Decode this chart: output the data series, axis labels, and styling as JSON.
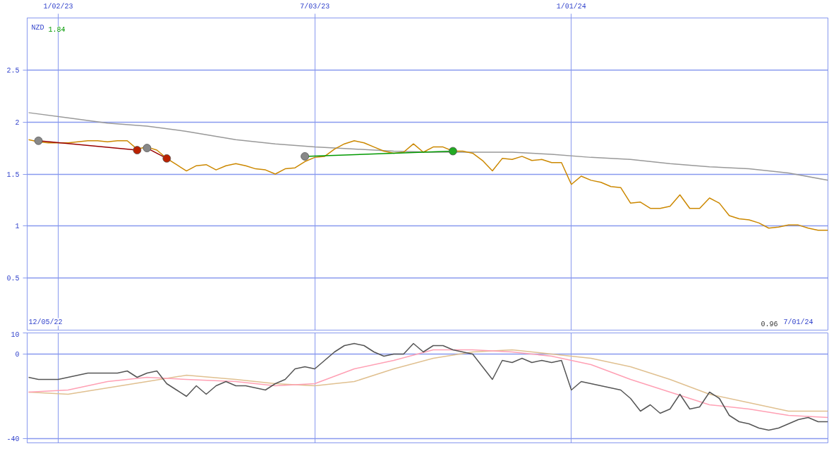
{
  "chart_data": [
    {
      "type": "line",
      "grid": true,
      "marker": "none",
      "annotations": [
        "NZD",
        "1.84",
        "12/05/22",
        "0.96",
        "7/01/24"
      ],
      "xlim": [
        "2022-12-11",
        "2024-07-01"
      ],
      "xticks": [
        {
          "value": "2023-01-02",
          "label": "1/02/23"
        },
        {
          "value": "2023-07-03",
          "label": "7/03/23"
        },
        {
          "value": "2024-01-01",
          "label": "1/01/24"
        }
      ],
      "ylim": [
        0,
        3
      ],
      "yticks": [
        0.5,
        1,
        1.5,
        2,
        2.5
      ],
      "x": [
        "2022-12-12",
        "2022-12-19",
        "2022-12-26",
        "2023-01-02",
        "2023-01-09",
        "2023-01-16",
        "2023-01-23",
        "2023-01-30",
        "2023-02-06",
        "2023-02-13",
        "2023-02-20",
        "2023-02-27",
        "2023-03-06",
        "2023-03-13",
        "2023-03-20",
        "2023-03-27",
        "2023-04-03",
        "2023-04-10",
        "2023-04-17",
        "2023-04-24",
        "2023-05-01",
        "2023-05-08",
        "2023-05-15",
        "2023-05-22",
        "2023-05-29",
        "2023-06-05",
        "2023-06-12",
        "2023-06-19",
        "2023-06-26",
        "2023-07-03",
        "2023-07-10",
        "2023-07-17",
        "2023-07-24",
        "2023-07-31",
        "2023-08-07",
        "2023-08-14",
        "2023-08-21",
        "2023-08-28",
        "2023-09-04",
        "2023-09-11",
        "2023-09-18",
        "2023-09-25",
        "2023-10-02",
        "2023-10-09",
        "2023-10-16",
        "2023-10-23",
        "2023-10-30",
        "2023-11-06",
        "2023-11-13",
        "2023-11-20",
        "2023-11-27",
        "2023-12-04",
        "2023-12-11",
        "2023-12-18",
        "2023-12-25",
        "2024-01-01",
        "2024-01-08",
        "2024-01-15",
        "2024-01-22",
        "2024-01-29",
        "2024-02-05",
        "2024-02-12",
        "2024-02-19",
        "2024-02-26",
        "2024-03-04",
        "2024-03-11",
        "2024-03-18",
        "2024-03-25",
        "2024-04-01",
        "2024-04-08",
        "2024-04-15",
        "2024-04-22",
        "2024-04-29",
        "2024-05-06",
        "2024-05-13",
        "2024-05-20",
        "2024-05-27",
        "2024-06-03",
        "2024-06-10",
        "2024-06-17",
        "2024-06-24",
        "2024-07-01"
      ],
      "series": [
        {
          "color": "#999999",
          "x": [
            "2022-12-12",
            "2023-01-09",
            "2023-02-06",
            "2023-03-06",
            "2023-04-03",
            "2023-05-08",
            "2023-06-05",
            "2023-07-03",
            "2023-07-31",
            "2023-08-28",
            "2023-09-25",
            "2023-10-23",
            "2023-11-20",
            "2023-12-18",
            "2024-01-15",
            "2024-02-12",
            "2024-03-11",
            "2024-04-08",
            "2024-05-06",
            "2024-06-03",
            "2024-07-01"
          ],
          "values": [
            2.09,
            2.04,
            1.99,
            1.96,
            1.91,
            1.83,
            1.79,
            1.76,
            1.74,
            1.72,
            1.71,
            1.71,
            1.71,
            1.69,
            1.66,
            1.64,
            1.6,
            1.57,
            1.55,
            1.51,
            1.44
          ]
        },
        {
          "color": "#cc8800",
          "values": [
            1.83,
            1.81,
            1.8,
            1.8,
            1.8,
            1.81,
            1.82,
            1.82,
            1.81,
            1.82,
            1.82,
            1.74,
            1.76,
            1.73,
            1.65,
            1.59,
            1.53,
            1.58,
            1.59,
            1.54,
            1.58,
            1.6,
            1.58,
            1.55,
            1.54,
            1.5,
            1.55,
            1.56,
            1.62,
            1.66,
            1.67,
            1.74,
            1.79,
            1.82,
            1.8,
            1.76,
            1.72,
            1.7,
            1.71,
            1.79,
            1.71,
            1.76,
            1.76,
            1.72,
            1.72,
            1.7,
            1.63,
            1.53,
            1.65,
            1.64,
            1.67,
            1.63,
            1.64,
            1.61,
            1.61,
            1.4,
            1.48,
            1.44,
            1.42,
            1.38,
            1.37,
            1.22,
            1.23,
            1.17,
            1.17,
            1.19,
            1.3,
            1.17,
            1.17,
            1.27,
            1.22,
            1.1,
            1.07,
            1.06,
            1.03,
            0.98,
            0.99,
            1.01,
            1.01,
            0.98,
            0.96,
            0.96
          ]
        },
        {
          "color": "#990000",
          "marker": "circle",
          "colors": [
            "#888888",
            "#bb2200"
          ],
          "x": [
            "2022-12-19",
            "2023-02-27"
          ],
          "values": [
            1.82,
            1.73
          ]
        },
        {
          "color": "#990000",
          "marker": "circle",
          "colors": [
            "#888888",
            "#bb2200"
          ],
          "x": [
            "2023-03-06",
            "2023-03-20"
          ],
          "values": [
            1.75,
            1.65
          ]
        },
        {
          "color": "#009900",
          "marker": "circle",
          "colors": [
            "#888888",
            "#22aa22"
          ],
          "x": [
            "2023-06-26",
            "2023-10-09"
          ],
          "values": [
            1.67,
            1.72
          ]
        }
      ]
    },
    {
      "type": "line",
      "grid": true,
      "tick_labels": "y",
      "xlim": [
        "2022-12-11",
        "2024-07-01"
      ],
      "xticks": [
        {
          "value": "2023-01-02",
          "label": null
        },
        {
          "value": "2023-07-03",
          "label": null
        },
        {
          "value": "2024-01-01",
          "label": null
        }
      ],
      "ylim": [
        -42,
        10
      ],
      "yticks": [
        -40,
        0,
        10
      ],
      "x": [
        "2022-12-12",
        "2022-12-19",
        "2022-12-26",
        "2023-01-02",
        "2023-01-09",
        "2023-01-16",
        "2023-01-23",
        "2023-01-30",
        "2023-02-06",
        "2023-02-13",
        "2023-02-20",
        "2023-02-27",
        "2023-03-06",
        "2023-03-13",
        "2023-03-20",
        "2023-03-27",
        "2023-04-03",
        "2023-04-10",
        "2023-04-17",
        "2023-04-24",
        "2023-05-01",
        "2023-05-08",
        "2023-05-15",
        "2023-05-22",
        "2023-05-29",
        "2023-06-05",
        "2023-06-12",
        "2023-06-19",
        "2023-06-26",
        "2023-07-03",
        "2023-07-10",
        "2023-07-17",
        "2023-07-24",
        "2023-07-31",
        "2023-08-07",
        "2023-08-14",
        "2023-08-21",
        "2023-08-28",
        "2023-09-04",
        "2023-09-11",
        "2023-09-18",
        "2023-09-25",
        "2023-10-02",
        "2023-10-09",
        "2023-10-16",
        "2023-10-23",
        "2023-10-30",
        "2023-11-06",
        "2023-11-13",
        "2023-11-20",
        "2023-11-27",
        "2023-12-04",
        "2023-12-11",
        "2023-12-18",
        "2023-12-25",
        "2024-01-01",
        "2024-01-08",
        "2024-01-15",
        "2024-01-22",
        "2024-01-29",
        "2024-02-05",
        "2024-02-12",
        "2024-02-19",
        "2024-02-26",
        "2024-03-04",
        "2024-03-11",
        "2024-03-18",
        "2024-03-25",
        "2024-04-01",
        "2024-04-08",
        "2024-04-15",
        "2024-04-22",
        "2024-04-29",
        "2024-05-06",
        "2024-05-13",
        "2024-05-20",
        "2024-05-27",
        "2024-06-03",
        "2024-06-10",
        "2024-06-17",
        "2024-06-24",
        "2024-07-01"
      ],
      "series": [
        {
          "color": "#e0c090",
          "x": [
            "2022-12-12",
            "2023-01-09",
            "2023-02-06",
            "2023-03-06",
            "2023-04-03",
            "2023-05-08",
            "2023-06-05",
            "2023-07-03",
            "2023-07-31",
            "2023-08-28",
            "2023-09-25",
            "2023-10-23",
            "2023-11-20",
            "2023-12-18",
            "2024-01-15",
            "2024-02-12",
            "2024-03-11",
            "2024-04-08",
            "2024-05-06",
            "2024-06-03",
            "2024-07-01"
          ],
          "values": [
            -18,
            -19,
            -16,
            -13,
            -10,
            -12,
            -14,
            -15,
            -13,
            -7,
            -2,
            1,
            2,
            0,
            -2,
            -6,
            -12,
            -19,
            -23,
            -27,
            -27
          ]
        },
        {
          "color": "#ffa0b4",
          "x": [
            "2022-12-12",
            "2023-01-09",
            "2023-02-06",
            "2023-03-06",
            "2023-04-03",
            "2023-05-08",
            "2023-06-05",
            "2023-07-03",
            "2023-07-31",
            "2023-08-28",
            "2023-09-25",
            "2023-10-23",
            "2023-11-20",
            "2023-12-18",
            "2024-01-15",
            "2024-02-12",
            "2024-03-11",
            "2024-04-08",
            "2024-05-06",
            "2024-06-03",
            "2024-07-01"
          ],
          "values": [
            -18,
            -17,
            -13,
            -11,
            -12,
            -13,
            -15,
            -14,
            -7,
            -3,
            2,
            2,
            1,
            -1,
            -5,
            -12,
            -18,
            -24,
            -26,
            -29,
            -30
          ]
        },
        {
          "color": "#555555",
          "values": [
            -11,
            -12,
            -12,
            -12,
            -11,
            -10,
            -9,
            -9,
            -9,
            -9,
            -8,
            -11,
            -9,
            -8,
            -14,
            -17,
            -20,
            -15,
            -19,
            -15,
            -13,
            -15,
            -15,
            -16,
            -17,
            -14,
            -12,
            -7,
            -6,
            -7,
            -3,
            1,
            4,
            5,
            4,
            1,
            -1,
            0,
            0,
            5,
            1,
            4,
            4,
            2,
            1,
            0,
            -6,
            -12,
            -3,
            -4,
            -2,
            -4,
            -3,
            -4,
            -3,
            -17,
            -13,
            -14,
            -15,
            -16,
            -17,
            -21,
            -27,
            -24,
            -28,
            -26,
            -19,
            -26,
            -25,
            -18,
            -21,
            -29,
            -32,
            -33,
            -35,
            -36,
            -35,
            -33,
            -31,
            -30,
            -32,
            -32
          ]
        }
      ]
    }
  ]
}
